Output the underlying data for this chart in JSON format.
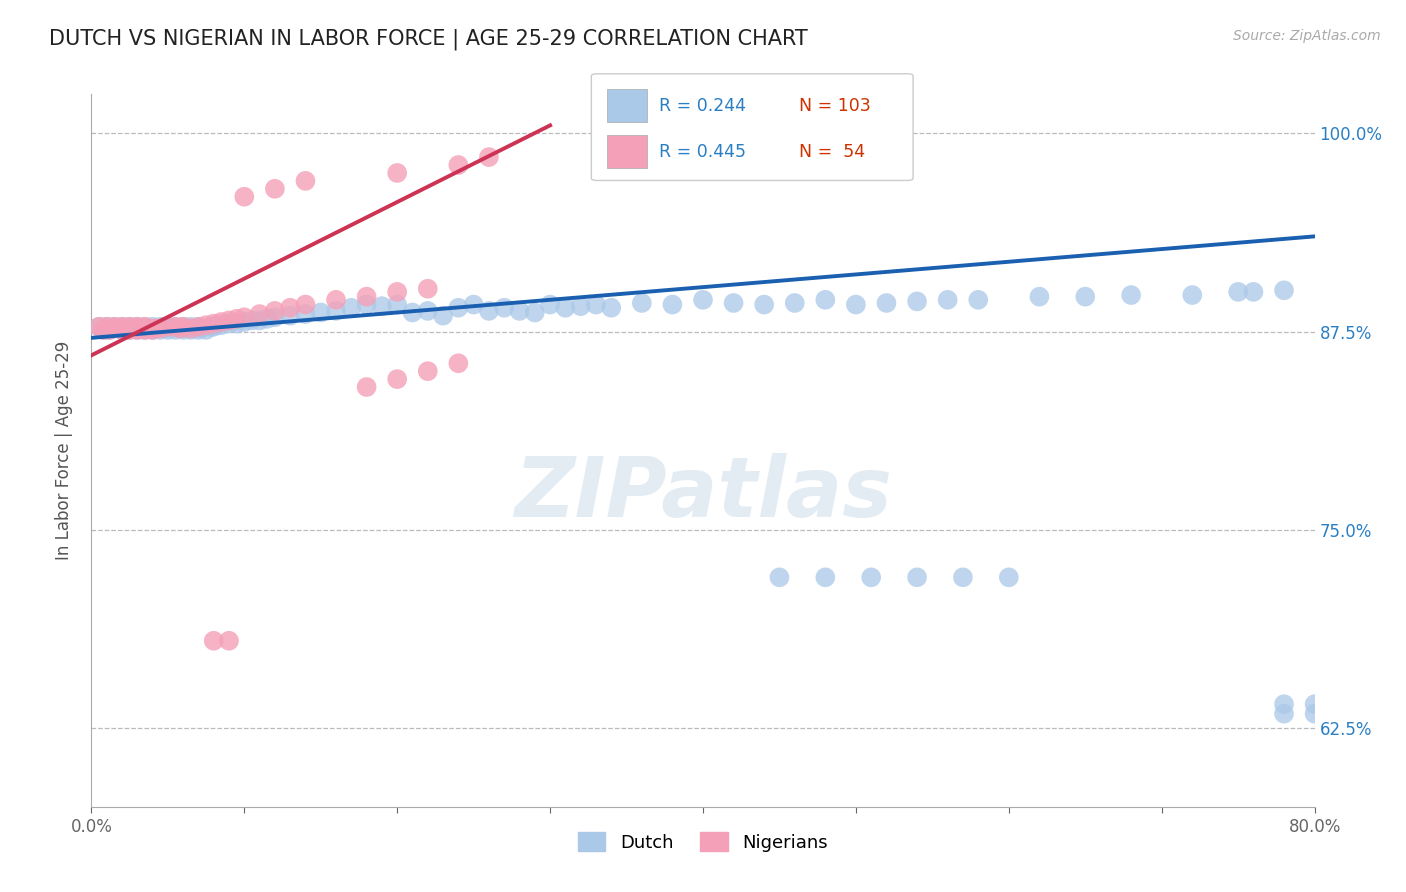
{
  "title": "DUTCH VS NIGERIAN IN LABOR FORCE | AGE 25-29 CORRELATION CHART",
  "source_text": "Source: ZipAtlas.com",
  "ylabel": "In Labor Force | Age 25-29",
  "x_min": 0.0,
  "x_max": 0.8,
  "y_min": 0.575,
  "y_max": 1.025,
  "legend_r_dutch": "R = 0.244",
  "legend_n_dutch": "N = 103",
  "legend_r_nigerian": "R = 0.445",
  "legend_n_nigerian": "N =  54",
  "dutch_color": "#aac8e8",
  "nigerian_color": "#f4a0b8",
  "dutch_line_color": "#1a5fb0",
  "nigerian_line_color": "#cc3355",
  "watermark_color": "#c8d8e8",
  "dutch_x": [
    0.005,
    0.008,
    0.01,
    0.012,
    0.015,
    0.015,
    0.018,
    0.02,
    0.02,
    0.022,
    0.025,
    0.025,
    0.028,
    0.03,
    0.03,
    0.032,
    0.035,
    0.035,
    0.038,
    0.04,
    0.04,
    0.042,
    0.045,
    0.045,
    0.048,
    0.05,
    0.05,
    0.052,
    0.055,
    0.055,
    0.058,
    0.06,
    0.06,
    0.062,
    0.065,
    0.065,
    0.068,
    0.07,
    0.07,
    0.072,
    0.075,
    0.078,
    0.08,
    0.082,
    0.085,
    0.09,
    0.095,
    0.1,
    0.105,
    0.11,
    0.115,
    0.12,
    0.13,
    0.14,
    0.15,
    0.16,
    0.17,
    0.18,
    0.19,
    0.2,
    0.21,
    0.22,
    0.23,
    0.24,
    0.25,
    0.26,
    0.27,
    0.28,
    0.29,
    0.3,
    0.31,
    0.32,
    0.33,
    0.34,
    0.36,
    0.38,
    0.4,
    0.42,
    0.44,
    0.46,
    0.48,
    0.5,
    0.52,
    0.54,
    0.56,
    0.58,
    0.62,
    0.65,
    0.68,
    0.72,
    0.75,
    0.76,
    0.78,
    0.45,
    0.48,
    0.51,
    0.54,
    0.57,
    0.6,
    0.78,
    0.8,
    0.78,
    0.8
  ],
  "dutch_y": [
    0.878,
    0.876,
    0.878,
    0.876,
    0.877,
    0.878,
    0.877,
    0.876,
    0.878,
    0.877,
    0.876,
    0.878,
    0.877,
    0.876,
    0.878,
    0.877,
    0.876,
    0.878,
    0.877,
    0.876,
    0.878,
    0.877,
    0.876,
    0.878,
    0.877,
    0.876,
    0.878,
    0.877,
    0.876,
    0.878,
    0.877,
    0.876,
    0.878,
    0.877,
    0.876,
    0.878,
    0.877,
    0.876,
    0.878,
    0.877,
    0.876,
    0.878,
    0.878,
    0.879,
    0.879,
    0.88,
    0.88,
    0.881,
    0.882,
    0.882,
    0.883,
    0.884,
    0.885,
    0.886,
    0.887,
    0.888,
    0.89,
    0.892,
    0.891,
    0.892,
    0.887,
    0.888,
    0.885,
    0.89,
    0.892,
    0.888,
    0.89,
    0.888,
    0.887,
    0.892,
    0.89,
    0.891,
    0.892,
    0.89,
    0.893,
    0.892,
    0.895,
    0.893,
    0.892,
    0.893,
    0.895,
    0.892,
    0.893,
    0.894,
    0.895,
    0.895,
    0.897,
    0.897,
    0.898,
    0.898,
    0.9,
    0.9,
    0.901,
    0.72,
    0.72,
    0.72,
    0.72,
    0.72,
    0.72,
    0.634,
    0.634,
    0.64,
    0.64
  ],
  "nigerian_x": [
    0.005,
    0.008,
    0.01,
    0.012,
    0.015,
    0.015,
    0.018,
    0.02,
    0.02,
    0.022,
    0.025,
    0.025,
    0.028,
    0.03,
    0.03,
    0.032,
    0.035,
    0.035,
    0.038,
    0.04,
    0.042,
    0.045,
    0.05,
    0.055,
    0.058,
    0.06,
    0.065,
    0.07,
    0.075,
    0.08,
    0.085,
    0.09,
    0.095,
    0.1,
    0.11,
    0.12,
    0.13,
    0.14,
    0.16,
    0.18,
    0.2,
    0.22,
    0.1,
    0.12,
    0.14,
    0.2,
    0.24,
    0.26,
    0.18,
    0.2,
    0.22,
    0.24,
    0.08,
    0.09
  ],
  "nigerian_y": [
    0.878,
    0.876,
    0.878,
    0.876,
    0.877,
    0.878,
    0.877,
    0.876,
    0.878,
    0.877,
    0.876,
    0.878,
    0.877,
    0.876,
    0.878,
    0.877,
    0.876,
    0.878,
    0.877,
    0.876,
    0.877,
    0.877,
    0.878,
    0.878,
    0.877,
    0.878,
    0.877,
    0.878,
    0.879,
    0.88,
    0.881,
    0.882,
    0.883,
    0.884,
    0.886,
    0.888,
    0.89,
    0.892,
    0.895,
    0.897,
    0.9,
    0.902,
    0.96,
    0.965,
    0.97,
    0.975,
    0.98,
    0.985,
    0.84,
    0.845,
    0.85,
    0.855,
    0.68,
    0.68
  ],
  "blue_trend_x0": 0.0,
  "blue_trend_y0": 0.871,
  "blue_trend_x1": 0.8,
  "blue_trend_y1": 0.935,
  "pink_trend_x0": 0.0,
  "pink_trend_y0": 0.86,
  "pink_trend_x1": 0.3,
  "pink_trend_y1": 1.005
}
